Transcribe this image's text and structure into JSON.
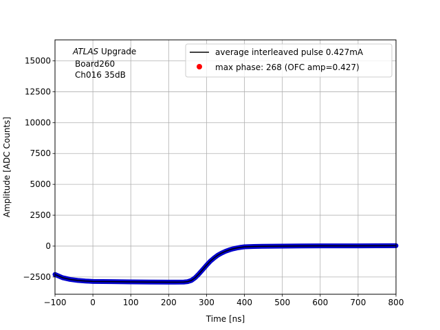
{
  "chart_data": {
    "type": "scatter",
    "xlabel": "Time [ns]",
    "ylabel": "Amplitude [ADC Counts]",
    "xlim": [
      -100,
      800
    ],
    "ylim": [
      -3900,
      16700
    ],
    "xticks": [
      -100,
      0,
      100,
      200,
      300,
      400,
      500,
      600,
      700,
      800
    ],
    "yticks": [
      -2500,
      0,
      2500,
      5000,
      7500,
      10000,
      12500,
      15000
    ],
    "xtick_labels": [
      "−100",
      "0",
      "100",
      "200",
      "300",
      "400",
      "500",
      "600",
      "700",
      "800"
    ],
    "ytick_labels": [
      "−2500",
      "0",
      "2500",
      "5000",
      "7500",
      "10000",
      "12500",
      "15000"
    ],
    "grid": true,
    "legend_position": "upper-right",
    "annotation": {
      "line1_italic": "ATLAS",
      "line1_rest": " Upgrade",
      "line2": "Board260",
      "line3": "Ch016 35dB"
    },
    "series": [
      {
        "name": "average interleaved pulse 0.427mA",
        "kind": "line",
        "color": "#000000",
        "x": [
          -100,
          -80,
          -60,
          -40,
          -20,
          0,
          50,
          100,
          150,
          200,
          240,
          250,
          260,
          270,
          280,
          290,
          300,
          310,
          320,
          330,
          340,
          350,
          360,
          370,
          380,
          390,
          400,
          425,
          450,
          500,
          550,
          600,
          650,
          700,
          750,
          800
        ],
        "y": [
          -2300,
          -2560,
          -2700,
          -2780,
          -2830,
          -2860,
          -2880,
          -2900,
          -2910,
          -2920,
          -2910,
          -2880,
          -2780,
          -2560,
          -2250,
          -1900,
          -1550,
          -1220,
          -960,
          -730,
          -560,
          -420,
          -310,
          -220,
          -150,
          -100,
          -60,
          -30,
          -15,
          0,
          10,
          15,
          20,
          20,
          25,
          30
        ]
      },
      {
        "name": "max phase: 268 (OFC amp=0.427)",
        "kind": "marker",
        "color": "#ff0000",
        "x": [],
        "y": []
      },
      {
        "name": "",
        "kind": "samples",
        "color": "#0000cc",
        "x": [
          -100,
          -80,
          -60,
          -40,
          -20,
          0,
          50,
          100,
          150,
          200,
          240,
          250,
          260,
          270,
          280,
          290,
          300,
          310,
          320,
          330,
          340,
          350,
          360,
          370,
          380,
          390,
          400,
          425,
          450,
          500,
          550,
          600,
          650,
          700,
          750,
          800
        ],
        "y": [
          -2300,
          -2560,
          -2700,
          -2780,
          -2830,
          -2860,
          -2880,
          -2900,
          -2910,
          -2920,
          -2910,
          -2880,
          -2780,
          -2560,
          -2250,
          -1900,
          -1550,
          -1220,
          -960,
          -730,
          -560,
          -420,
          -310,
          -220,
          -150,
          -100,
          -60,
          -30,
          -15,
          0,
          10,
          15,
          20,
          20,
          25,
          30
        ]
      }
    ]
  }
}
